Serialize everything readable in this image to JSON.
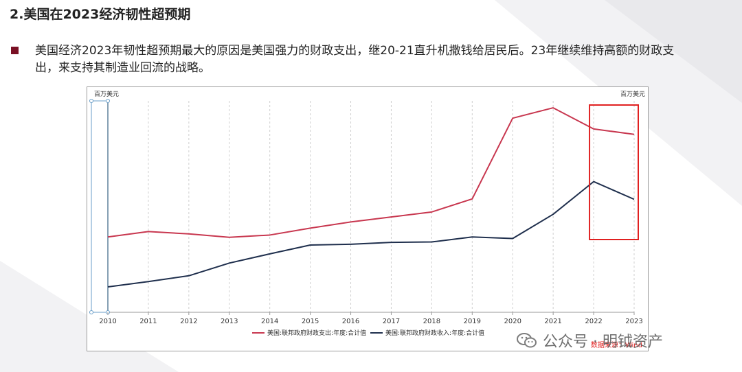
{
  "page": {
    "title": "2.美国在2023经济韧性超预期",
    "bullet": "美国经济2023年韧性超预期最大的原因是美国强力的财政支出，继20-21直升机撒钱给居民后。23年继续维持高额的财政支出，来支持其制造业回流的战略。"
  },
  "watermark": {
    "text": "公众号 · 明钺资产",
    "icon": "wechat-icon"
  },
  "colors": {
    "bullet": "#7a1024",
    "spending": "#c8374f",
    "revenue": "#1f2f4d",
    "highlight": "#e02020"
  },
  "chart_data": {
    "type": "line",
    "title": "",
    "y_unit_left": "百万美元",
    "y_unit_right": "百万美元",
    "xlabel": "",
    "ylabel": "",
    "categories": [
      "2010",
      "2011",
      "2012",
      "2013",
      "2014",
      "2015",
      "2016",
      "2017",
      "2018",
      "2019",
      "2020",
      "2021",
      "2022",
      "2023"
    ],
    "ylim": [
      1500000,
      7000000
    ],
    "grid": "vertical",
    "legend_position": "bottom",
    "source": "数据来源：Wind",
    "series": [
      {
        "name": "美国:联邦政府财政支出:年度:合计值",
        "values": [
          3460000,
          3600000,
          3540000,
          3450000,
          3510000,
          3690000,
          3850000,
          3980000,
          4110000,
          4450000,
          6550000,
          6820000,
          6270000,
          6130000
        ]
      },
      {
        "name": "美国:联邦政府财政收入:年度:合计值",
        "values": [
          2160000,
          2300000,
          2450000,
          2780000,
          3020000,
          3250000,
          3270000,
          3320000,
          3330000,
          3460000,
          3420000,
          4050000,
          4900000,
          4440000
        ]
      }
    ],
    "highlight_categories": [
      "2022",
      "2023"
    ]
  }
}
